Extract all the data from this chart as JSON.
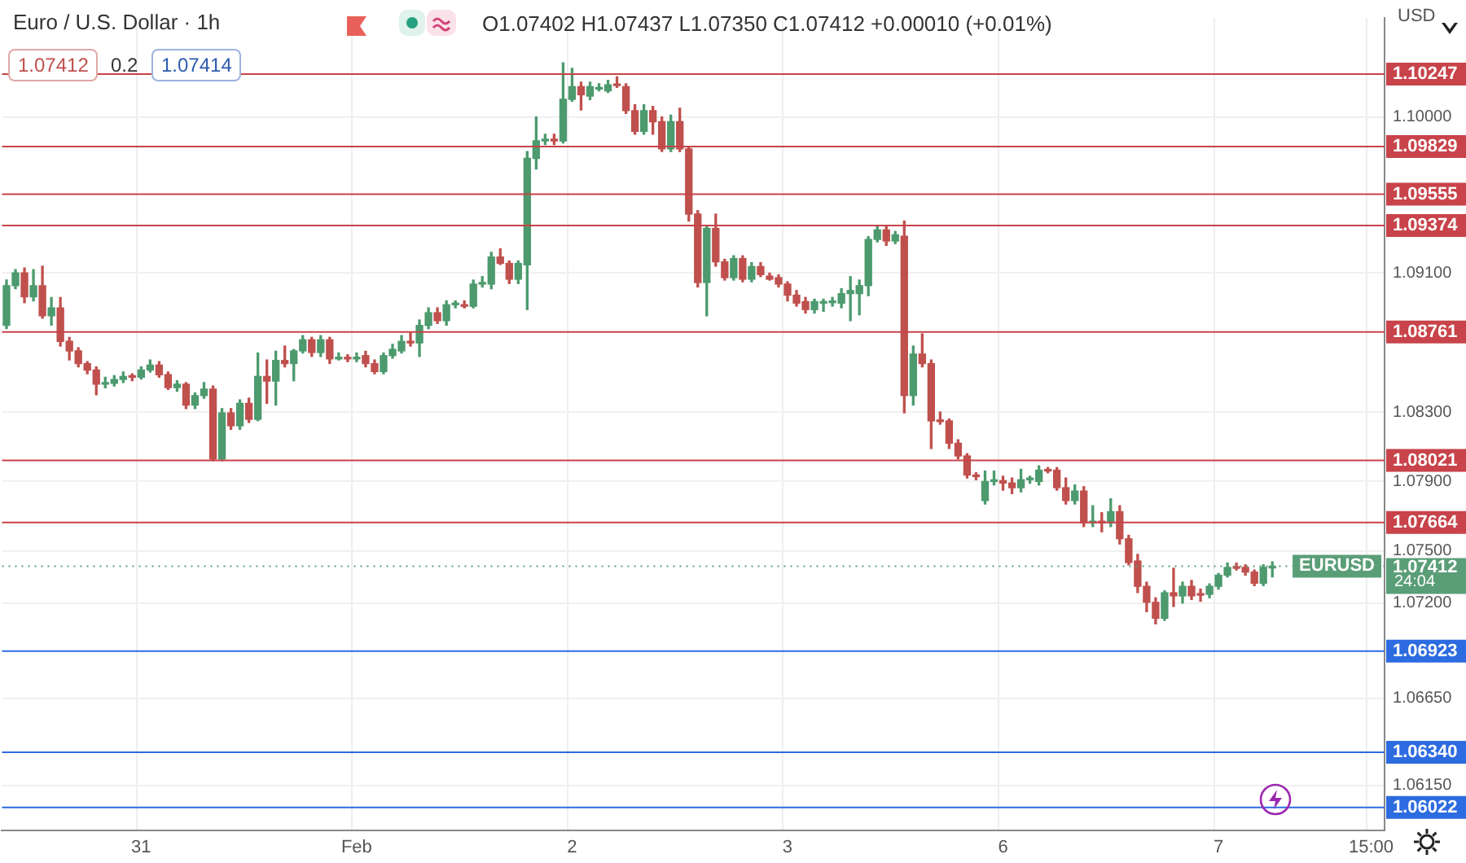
{
  "chart_data": {
    "type": "candlestick",
    "annotations": [
      "Euro / U.S. Dollar · 1h",
      "O1.07402 H1.07437 L1.07350 C1.07412 +0.00010 (+0.01%)",
      "1.07412",
      "0.2",
      "1.07414",
      "USD",
      "24:04"
    ],
    "categories": [
      null,
      null,
      null,
      null,
      null,
      null,
      null,
      null,
      null,
      null,
      null,
      null,
      null,
      null,
      null,
      "31",
      null,
      null,
      null,
      null,
      null,
      null,
      null,
      null,
      null,
      null,
      null,
      null,
      null,
      null,
      null,
      null,
      null,
      null,
      null,
      null,
      null,
      null,
      null,
      "Feb",
      null,
      null,
      null,
      null,
      null,
      null,
      null,
      null,
      null,
      null,
      null,
      null,
      null,
      null,
      null,
      null,
      null,
      null,
      null,
      null,
      null,
      null,
      null,
      "2",
      null,
      null,
      null,
      null,
      null,
      null,
      null,
      null,
      null,
      null,
      null,
      null,
      null,
      null,
      null,
      null,
      null,
      null,
      null,
      null,
      null,
      null,
      null,
      "3",
      null,
      null,
      null,
      null,
      null,
      null,
      null,
      null,
      null,
      null,
      null,
      null,
      null,
      null,
      null,
      null,
      null,
      null,
      null,
      null,
      null,
      null,
      null,
      "6",
      null,
      null,
      null,
      null,
      null,
      null,
      null,
      null,
      null,
      null,
      null,
      null,
      null,
      null,
      null,
      null,
      null,
      null,
      null,
      null,
      null,
      null,
      null,
      "7",
      null,
      null,
      null,
      null,
      null,
      null,
      null,
      null,
      null,
      null,
      null,
      null,
      null,
      null,
      null,
      null,
      "15:00",
      null
    ],
    "ohlc": [
      [
        1.08799,
        1.0906,
        1.0878,
        1.09028
      ],
      [
        1.09028,
        1.0912,
        1.0901,
        1.09101
      ],
      [
        1.09101,
        1.0913,
        1.0893,
        1.08964
      ],
      [
        1.08964,
        1.0912,
        1.0894,
        1.09028
      ],
      [
        1.09028,
        1.0914,
        1.0884,
        1.08854
      ],
      [
        1.08854,
        1.0896,
        1.088,
        1.089
      ],
      [
        1.089,
        1.0896,
        1.0868,
        1.08707
      ],
      [
        1.08707,
        1.0873,
        1.086,
        1.08652
      ],
      [
        1.08652,
        1.0867,
        1.0856,
        1.08579
      ],
      [
        1.08579,
        1.0859,
        1.0852,
        1.08542
      ],
      [
        1.08542,
        1.0856,
        1.084,
        1.0846
      ],
      [
        1.0846,
        1.085,
        1.0844,
        1.08465
      ],
      [
        1.08465,
        1.0851,
        1.0845,
        1.08487
      ],
      [
        1.08487,
        1.0853,
        1.0847,
        1.08505
      ],
      [
        1.08505,
        1.0852,
        1.0848,
        1.085
      ],
      [
        1.085,
        1.0856,
        1.0849,
        1.08542
      ],
      [
        1.08542,
        1.086,
        1.0853,
        1.0857
      ],
      [
        1.0857,
        1.0859,
        1.085,
        1.08515
      ],
      [
        1.08515,
        1.0853,
        1.0843,
        1.08441
      ],
      [
        1.08441,
        1.0848,
        1.0842,
        1.0846
      ],
      [
        1.0846,
        1.0847,
        1.0832,
        1.0834
      ],
      [
        1.0834,
        1.0841,
        1.0832,
        1.08395
      ],
      [
        1.08395,
        1.0847,
        1.0838,
        1.08432
      ],
      [
        1.08432,
        1.0845,
        1.0802,
        1.08029
      ],
      [
        1.08029,
        1.0832,
        1.0802,
        1.08295
      ],
      [
        1.08295,
        1.0832,
        1.082,
        1.08221
      ],
      [
        1.08221,
        1.0837,
        1.082,
        1.0835
      ],
      [
        1.0835,
        1.0838,
        1.0824,
        1.08258
      ],
      [
        1.08258,
        1.0864,
        1.0825,
        1.08505
      ],
      [
        1.08505,
        1.086,
        1.0835,
        1.08478
      ],
      [
        1.08478,
        1.0865,
        1.0834,
        1.08597
      ],
      [
        1.08597,
        1.0868,
        1.0856,
        1.08579
      ],
      [
        1.08579,
        1.0866,
        1.0848,
        1.08652
      ],
      [
        1.08652,
        1.0874,
        1.0864,
        1.08716
      ],
      [
        1.08716,
        1.0873,
        1.0862,
        1.08643
      ],
      [
        1.08643,
        1.0874,
        1.0862,
        1.08716
      ],
      [
        1.08716,
        1.0873,
        1.0858,
        1.08606
      ],
      [
        1.08606,
        1.0864,
        1.086,
        1.08615
      ],
      [
        1.08615,
        1.0863,
        1.0859,
        1.08606
      ],
      [
        1.08606,
        1.0864,
        1.0859,
        1.08615
      ],
      [
        1.08625,
        1.0865,
        1.0856,
        1.08579
      ],
      [
        1.08579,
        1.086,
        1.0852,
        1.08533
      ],
      [
        1.08533,
        1.0864,
        1.0852,
        1.08625
      ],
      [
        1.08625,
        1.0869,
        1.0861,
        1.08661
      ],
      [
        1.08652,
        1.0874,
        1.0864,
        1.08707
      ],
      [
        1.08707,
        1.0876,
        1.0868,
        1.08698
      ],
      [
        1.08698,
        1.0883,
        1.0862,
        1.08799
      ],
      [
        1.08799,
        1.089,
        1.0878,
        1.08872
      ],
      [
        1.08872,
        1.089,
        1.0881,
        1.08826
      ],
      [
        1.08826,
        1.0894,
        1.088,
        1.08918
      ],
      [
        1.08918,
        1.0894,
        1.089,
        1.08927
      ],
      [
        1.08918,
        1.0894,
        1.089,
        1.08909
      ],
      [
        1.08909,
        1.0906,
        1.089,
        1.09037
      ],
      [
        1.09037,
        1.0908,
        1.0902,
        1.09046
      ],
      [
        1.09037,
        1.0922,
        1.0901,
        1.09193
      ],
      [
        1.09193,
        1.0924,
        1.0915,
        1.09156
      ],
      [
        1.09156,
        1.0917,
        1.0904,
        1.09065
      ],
      [
        1.09065,
        1.0917,
        1.0904,
        1.09156
      ],
      [
        1.09147,
        1.098,
        1.0889,
        1.09761
      ],
      [
        1.09761,
        1.1,
        1.097,
        1.09862
      ],
      [
        1.09862,
        1.099,
        1.0984,
        1.0987
      ],
      [
        1.0987,
        1.099,
        1.0984,
        1.09862
      ],
      [
        1.09862,
        1.10311,
        1.0985,
        1.10101
      ],
      [
        1.10101,
        1.1028,
        1.1009,
        1.10174
      ],
      [
        1.10174,
        1.102,
        1.1004,
        1.10128
      ],
      [
        1.10119,
        1.102,
        1.101,
        1.10174
      ],
      [
        1.1016,
        1.1019,
        1.1015,
        1.10165
      ],
      [
        1.1015,
        1.1021,
        1.1014,
        1.10185
      ],
      [
        1.10185,
        1.1023,
        1.1017,
        1.1018
      ],
      [
        1.10174,
        1.1019,
        1.1002,
        1.10036
      ],
      [
        1.10036,
        1.1007,
        1.099,
        1.09917
      ],
      [
        1.09917,
        1.1007,
        1.099,
        1.10036
      ],
      [
        1.10036,
        1.1006,
        1.099,
        1.09972
      ],
      [
        1.09972,
        1.1,
        1.098,
        1.09816
      ],
      [
        1.09816,
        1.1001,
        1.098,
        1.09972
      ],
      [
        1.09972,
        1.1005,
        1.098,
        1.09816
      ],
      [
        1.09816,
        1.0983,
        1.094,
        1.0944
      ],
      [
        1.0944,
        1.0946,
        1.0902,
        1.09046
      ],
      [
        1.09046,
        1.0937,
        1.08854,
        1.09358
      ],
      [
        1.09358,
        1.0944,
        1.0914,
        1.09165
      ],
      [
        1.09165,
        1.0918,
        1.0906,
        1.09074
      ],
      [
        1.09074,
        1.092,
        1.0906,
        1.09184
      ],
      [
        1.09184,
        1.092,
        1.0905,
        1.09065
      ],
      [
        1.09065,
        1.0916,
        1.0905,
        1.09138
      ],
      [
        1.09138,
        1.0916,
        1.0908,
        1.09092
      ],
      [
        1.09083,
        1.091,
        1.0906,
        1.09065
      ],
      [
        1.09074,
        1.0909,
        1.0902,
        1.09037
      ],
      [
        1.09037,
        1.0905,
        1.0894,
        1.08973
      ],
      [
        1.08973,
        1.09,
        1.0891,
        1.08927
      ],
      [
        1.08936,
        1.0896,
        1.0887,
        1.0889
      ],
      [
        1.0889,
        1.0895,
        1.0887,
        1.08936
      ],
      [
        1.08927,
        1.0895,
        1.0888,
        1.0893
      ],
      [
        1.0893,
        1.0896,
        1.0891,
        1.08936
      ],
      [
        1.08927,
        1.0901,
        1.089,
        1.08982
      ],
      [
        1.08982,
        1.0908,
        1.08826,
        1.09
      ],
      [
        1.08982,
        1.0906,
        1.0886,
        1.09028
      ],
      [
        1.09028,
        1.0931,
        1.0897,
        1.09294
      ],
      [
        1.09294,
        1.0937,
        1.0928,
        1.09349
      ],
      [
        1.09349,
        1.0937,
        1.0926,
        1.09285
      ],
      [
        1.09285,
        1.0934,
        1.0927,
        1.09321
      ],
      [
        1.09312,
        1.094,
        1.08295,
        1.08395
      ],
      [
        1.08395,
        1.0868,
        1.0834,
        1.08634
      ],
      [
        1.08634,
        1.0875,
        1.0856,
        1.08579
      ],
      [
        1.08579,
        1.086,
        1.0809,
        1.08249
      ],
      [
        1.08249,
        1.083,
        1.0823,
        1.08245
      ],
      [
        1.08249,
        1.0826,
        1.0809,
        1.0812
      ],
      [
        1.0812,
        1.0814,
        1.0803,
        1.08047
      ],
      [
        1.08047,
        1.0806,
        1.0792,
        1.07937
      ],
      [
        1.07937,
        1.0795,
        1.0791,
        1.07928
      ],
      [
        1.0779,
        1.0796,
        1.0777,
        1.079
      ],
      [
        1.079,
        1.0796,
        1.0788,
        1.07905
      ],
      [
        1.07905,
        1.0793,
        1.0785,
        1.07891
      ],
      [
        1.07891,
        1.0792,
        1.0783,
        1.07864
      ],
      [
        1.07864,
        1.0797,
        1.0784,
        1.0791
      ],
      [
        1.0791,
        1.0793,
        1.0789,
        1.07915
      ],
      [
        1.079,
        1.0799,
        1.0788,
        1.07965
      ],
      [
        1.07965,
        1.0798,
        1.0795,
        1.0796
      ],
      [
        1.07965,
        1.0798,
        1.0785,
        1.07864
      ],
      [
        1.07864,
        1.0792,
        1.0777,
        1.0779
      ],
      [
        1.0779,
        1.0788,
        1.0777,
        1.07845
      ],
      [
        1.07845,
        1.0787,
        1.0764,
        1.07662
      ],
      [
        1.07662,
        1.0776,
        1.0764,
        1.0767
      ],
      [
        1.0767,
        1.0772,
        1.0761,
        1.07662
      ],
      [
        1.07662,
        1.078,
        1.0764,
        1.07726
      ],
      [
        1.07726,
        1.0776,
        1.0754,
        1.0757
      ],
      [
        1.0757,
        1.0759,
        1.0742,
        1.07433
      ],
      [
        1.07442,
        1.0748,
        1.0726,
        1.07296
      ],
      [
        1.07296,
        1.0732,
        1.0715,
        1.07204
      ],
      [
        1.07204,
        1.0723,
        1.0708,
        1.07112
      ],
      [
        1.07112,
        1.0727,
        1.071,
        1.07259
      ],
      [
        1.07259,
        1.074,
        1.0718,
        1.07241
      ],
      [
        1.07241,
        1.0732,
        1.072,
        1.07296
      ],
      [
        1.07296,
        1.0733,
        1.0722,
        1.07241
      ],
      [
        1.0725,
        1.0728,
        1.0721,
        1.07245
      ],
      [
        1.0725,
        1.0731,
        1.0723,
        1.07296
      ],
      [
        1.07296,
        1.0737,
        1.0728,
        1.0736
      ],
      [
        1.0736,
        1.0743,
        1.0735,
        1.07405
      ],
      [
        1.07405,
        1.0743,
        1.0739,
        1.074
      ],
      [
        1.07405,
        1.0742,
        1.0736,
        1.07378
      ],
      [
        1.07378,
        1.0739,
        1.073,
        1.07314
      ],
      [
        1.07314,
        1.0742,
        1.073,
        1.07405
      ],
      [
        1.07402,
        1.07437,
        1.0735,
        1.07412
      ],
      null,
      null,
      null,
      null,
      null,
      null,
      null,
      null,
      null,
      null,
      null,
      null
    ],
    "colors": [
      "#4c9a6e",
      "#4c9a6e",
      "#c0504d",
      "#4c9a6e",
      "#c0504d",
      "#4c9a6e",
      "#c0504d",
      "#c0504d",
      "#c0504d",
      "#c0504d",
      "#c0504d",
      "#4c9a6e",
      "#4c9a6e",
      "#4c9a6e",
      "#c0504d",
      "#4c9a6e",
      "#4c9a6e",
      "#c0504d",
      "#c0504d",
      "#4c9a6e",
      "#c0504d",
      "#4c9a6e",
      "#4c9a6e",
      "#c0504d",
      "#4c9a6e",
      "#c0504d",
      "#4c9a6e",
      "#c0504d",
      "#4c9a6e",
      "#c0504d",
      "#4c9a6e",
      "#c0504d",
      "#4c9a6e",
      "#4c9a6e",
      "#c0504d",
      "#4c9a6e",
      "#c0504d",
      "#4c9a6e",
      "#c0504d",
      "#4c9a6e",
      "#c0504d",
      "#c0504d",
      "#4c9a6e",
      "#4c9a6e",
      "#4c9a6e",
      "#c0504d",
      "#4c9a6e",
      "#4c9a6e",
      "#c0504d",
      "#4c9a6e",
      "#4c9a6e",
      "#c0504d",
      "#4c9a6e",
      "#4c9a6e",
      "#4c9a6e",
      "#c0504d",
      "#c0504d",
      "#4c9a6e",
      "#4c9a6e",
      "#4c9a6e",
      "#4c9a6e",
      "#c0504d",
      "#4c9a6e",
      "#4c9a6e",
      "#c0504d",
      "#4c9a6e",
      "#4c9a6e",
      "#4c9a6e",
      "#c0504d",
      "#c0504d",
      "#c0504d",
      "#4c9a6e",
      "#c0504d",
      "#c0504d",
      "#4c9a6e",
      "#c0504d",
      "#c0504d",
      "#c0504d",
      "#4c9a6e",
      "#c0504d",
      "#c0504d",
      "#4c9a6e",
      "#c0504d",
      "#4c9a6e",
      "#c0504d",
      "#c0504d",
      "#c0504d",
      "#c0504d",
      "#c0504d",
      "#c0504d",
      "#4c9a6e",
      "#4c9a6e",
      "#4c9a6e",
      "#4c9a6e",
      "#4c9a6e",
      "#4c9a6e",
      "#4c9a6e",
      "#4c9a6e",
      "#c0504d",
      "#4c9a6e",
      "#c0504d",
      "#4c9a6e",
      "#c0504d",
      "#c0504d",
      "#c0504d",
      "#c0504d",
      "#c0504d",
      "#c0504d",
      "#c0504d",
      "#4c9a6e",
      "#4c9a6e",
      "#c0504d",
      "#c0504d",
      "#4c9a6e",
      "#4c9a6e",
      "#4c9a6e",
      "#c0504d",
      "#c0504d",
      "#c0504d",
      "#4c9a6e",
      "#c0504d",
      "#4c9a6e",
      "#c0504d",
      "#4c9a6e",
      "#c0504d",
      "#c0504d",
      "#c0504d",
      "#c0504d",
      "#c0504d",
      "#4c9a6e",
      "#c0504d",
      "#4c9a6e",
      "#c0504d",
      "#c0504d",
      "#4c9a6e",
      "#4c9a6e",
      "#4c9a6e",
      "#c0504d",
      "#c0504d",
      "#c0504d",
      "#4c9a6e",
      "#4c9a6e",
      null,
      null,
      null,
      null,
      null,
      null,
      null,
      null,
      null,
      null,
      null,
      null
    ],
    "ylim": [
      1.0589,
      1.1057
    ],
    "yticks": [
      {
        "value": 1.1,
        "label": "1.10000"
      },
      {
        "value": 1.091,
        "label": "1.09100"
      },
      {
        "value": 1.083,
        "label": "1.08300"
      },
      {
        "value": 1.079,
        "label": "1.07900"
      },
      {
        "value": 1.075,
        "label": "1.07500"
      },
      {
        "value": 1.072,
        "label": "1.07200"
      },
      {
        "value": 1.0665,
        "label": "1.06650"
      },
      {
        "value": 1.0615,
        "label": "1.06150"
      }
    ],
    "grid": true,
    "ref_lines": [
      {
        "axis": "y",
        "value": 1.10247,
        "label": "1.10247",
        "color": "#c8434a"
      },
      {
        "axis": "y",
        "value": 1.09829,
        "label": "1.09829",
        "color": "#c8434a"
      },
      {
        "axis": "y",
        "value": 1.09555,
        "label": "1.09555",
        "color": "#c8434a"
      },
      {
        "axis": "y",
        "value": 1.09374,
        "label": "1.09374",
        "color": "#c8434a"
      },
      {
        "axis": "y",
        "value": 1.08761,
        "label": "1.08761",
        "color": "#c8434a"
      },
      {
        "axis": "y",
        "value": 1.08021,
        "label": "1.08021",
        "color": "#c8434a"
      },
      {
        "axis": "y",
        "value": 1.07664,
        "label": "1.07664",
        "color": "#c8434a"
      },
      {
        "axis": "y",
        "value": 1.07412,
        "label": "EURUSD",
        "color": "#5a9e78",
        "line_style": "dotted"
      },
      {
        "axis": "y",
        "value": 1.06923,
        "label": "1.06923",
        "color": "#2d6be0"
      },
      {
        "axis": "y",
        "value": 1.0634,
        "label": "1.06340",
        "color": "#2d6be0"
      },
      {
        "axis": "y",
        "value": 1.06022,
        "label": "1.06022",
        "color": "#2d6be0"
      }
    ]
  }
}
